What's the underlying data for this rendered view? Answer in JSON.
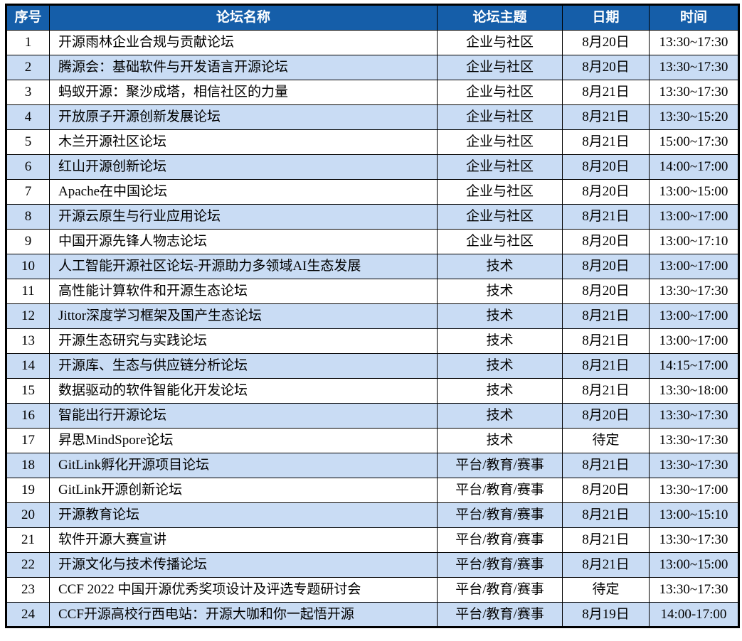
{
  "colors": {
    "header_bg": "#155EA9",
    "header_text": "#FFFFFF",
    "row_bg": "#FFFFFF",
    "row_alt_bg": "#C9DCF4",
    "grid_border": "#000000",
    "outer_border": "#000000",
    "cell_text": "#000000"
  },
  "table": {
    "columns": [
      {
        "key": "index",
        "label": "序号"
      },
      {
        "key": "name",
        "label": "论坛名称"
      },
      {
        "key": "topic",
        "label": "论坛主题"
      },
      {
        "key": "date",
        "label": "日期"
      },
      {
        "key": "time",
        "label": "时间"
      }
    ],
    "rows": [
      {
        "index": "1",
        "name": "开源雨林企业合规与贡献论坛",
        "topic": "企业与社区",
        "date": "8月20日",
        "time": "13:30~17:30"
      },
      {
        "index": "2",
        "name": "腾源会：基础软件与开发语言开源论坛",
        "topic": "企业与社区",
        "date": "8月20日",
        "time": "13:30~17:30"
      },
      {
        "index": "3",
        "name": "蚂蚁开源：聚沙成塔，相信社区的力量",
        "topic": "企业与社区",
        "date": "8月21日",
        "time": "13:30~17:30"
      },
      {
        "index": "4",
        "name": "开放原子开源创新发展论坛",
        "topic": "企业与社区",
        "date": "8月21日",
        "time": "13:30~15:20"
      },
      {
        "index": "5",
        "name": "木兰开源社区论坛",
        "topic": "企业与社区",
        "date": "8月21日",
        "time": "15:00~17:30"
      },
      {
        "index": "6",
        "name": "红山开源创新论坛",
        "topic": "企业与社区",
        "date": "8月20日",
        "time": "14:00~17:00"
      },
      {
        "index": "7",
        "name": "Apache在中国论坛",
        "topic": "企业与社区",
        "date": "8月20日",
        "time": "13:00~15:00"
      },
      {
        "index": "8",
        "name": "开源云原生与行业应用论坛",
        "topic": "企业与社区",
        "date": "8月21日",
        "time": "13:00~17:00"
      },
      {
        "index": "9",
        "name": "中国开源先锋人物志论坛",
        "topic": "企业与社区",
        "date": "8月20日",
        "time": "13:00~17:10"
      },
      {
        "index": "10",
        "name": "人工智能开源社区论坛-开源助力多领域AI生态发展",
        "topic": "技术",
        "date": "8月20日",
        "time": "13:00~17:00"
      },
      {
        "index": "11",
        "name": "高性能计算软件和开源生态论坛",
        "topic": "技术",
        "date": "8月20日",
        "time": "13:30~17:30"
      },
      {
        "index": "12",
        "name": "Jittor深度学习框架及国产生态论坛",
        "topic": "技术",
        "date": "8月21日",
        "time": "13:00~17:00"
      },
      {
        "index": "13",
        "name": "开源生态研究与实践论坛",
        "topic": "技术",
        "date": "8月21日",
        "time": "13:00~17:00"
      },
      {
        "index": "14",
        "name": "开源库、生态与供应链分析论坛",
        "topic": "技术",
        "date": "8月21日",
        "time": "14:15~17:00"
      },
      {
        "index": "15",
        "name": "数据驱动的软件智能化开发论坛",
        "topic": "技术",
        "date": "8月21日",
        "time": "13:30~18:00"
      },
      {
        "index": "16",
        "name": "智能出行开源论坛",
        "topic": "技术",
        "date": "8月20日",
        "time": "13:30~17:30"
      },
      {
        "index": "17",
        "name": "昇思MindSpore论坛",
        "topic": "技术",
        "date": "待定",
        "time": "13:30~17:30"
      },
      {
        "index": "18",
        "name": "GitLink孵化开源项目论坛",
        "topic": "平台/教育/赛事",
        "date": "8月21日",
        "time": "13:30~17:30"
      },
      {
        "index": "19",
        "name": "GitLink开源创新论坛",
        "topic": "平台/教育/赛事",
        "date": "8月20日",
        "time": "13:30~17:00"
      },
      {
        "index": "20",
        "name": "开源教育论坛",
        "topic": "平台/教育/赛事",
        "date": "8月21日",
        "time": "13:00~15:10"
      },
      {
        "index": "21",
        "name": "软件开源大赛宣讲",
        "topic": "平台/教育/赛事",
        "date": "8月21日",
        "time": "13:30~17:30"
      },
      {
        "index": "22",
        "name": "开源文化与技术传播论坛",
        "topic": "平台/教育/赛事",
        "date": "8月21日",
        "time": "13:00~15:00"
      },
      {
        "index": "23",
        "name": "CCF 2022 中国开源优秀奖项设计及评选专题研讨会",
        "topic": "平台/教育/赛事",
        "date": "待定",
        "time": "13:30~17:30"
      },
      {
        "index": "24",
        "name": "CCF开源高校行西电站：开源大咖和你一起悟开源",
        "topic": "平台/教育/赛事",
        "date": "8月19日",
        "time": "14:00-17:00"
      }
    ]
  }
}
